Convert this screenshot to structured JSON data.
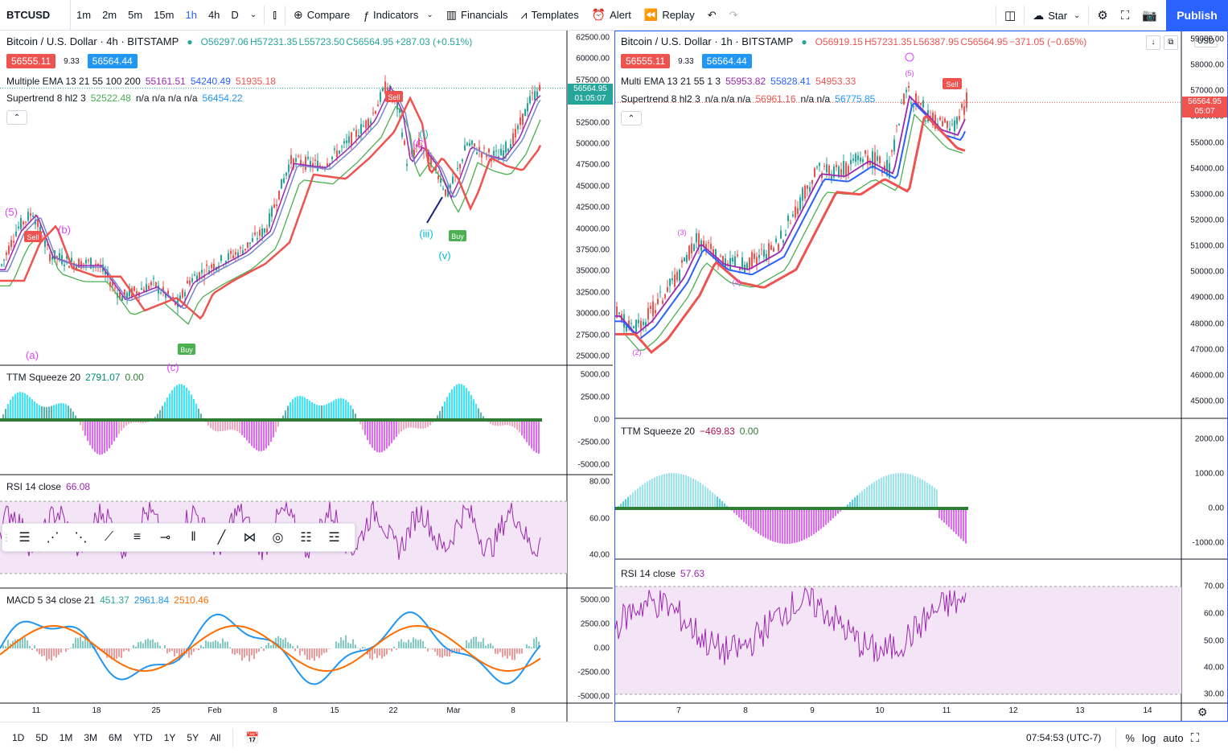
{
  "toolbar": {
    "symbol": "BTCUSD",
    "timeframes": [
      "1m",
      "2m",
      "5m",
      "15m",
      "1h",
      "4h",
      "D"
    ],
    "active_tf": "1h",
    "compare": "Compare",
    "indicators": "Indicators",
    "financials": "Financials",
    "templates": "Templates",
    "alert": "Alert",
    "replay": "Replay",
    "star": "Star",
    "publish": "Publish"
  },
  "left": {
    "title": "Bitcoin / U.S. Dollar · 4h · BITSTAMP",
    "ohlc": {
      "o": "O56297.06",
      "h": "H57231.35",
      "l": "L55723.50",
      "c": "C56564.95",
      "chg": "+287.03 (+0.51%)"
    },
    "bid": "56555.11",
    "spread": "9.33",
    "ask": "56564.44",
    "ema": {
      "label": "Multiple EMA 13 21 55 100 200",
      "v1": "55161.51",
      "v2": "54240.49",
      "v3": "51935.18"
    },
    "st": {
      "label": "Supertrend 8 hl2 3",
      "v1": "52522.48",
      "na": "n/a n/a n/a n/a",
      "v2": "56454.22"
    },
    "price_axis": [
      "62500.00",
      "60000.00",
      "57500.00",
      "55000.00",
      "52500.00",
      "50000.00",
      "47500.00",
      "45000.00",
      "42500.00",
      "40000.00",
      "37500.00",
      "35000.00",
      "32500.00",
      "30000.00",
      "27500.00",
      "25000.00"
    ],
    "last_price": "56564.95",
    "last_time": "01:05:07",
    "ttm": {
      "label": "TTM Squeeze 20",
      "v1": "2791.07",
      "v2": "0.00",
      "axis": [
        "5000.00",
        "2500.00",
        "0.00",
        "-2500.00",
        "-5000.00"
      ]
    },
    "rsi": {
      "label": "RSI 14 close",
      "v": "66.08",
      "axis": [
        "80.00",
        "60.00",
        "40.00"
      ]
    },
    "macd": {
      "label": "MACD 5 34 close 21",
      "v1": "451.37",
      "v2": "2961.84",
      "v3": "2510.46",
      "axis": [
        "5000.00",
        "2500.00",
        "0.00",
        "-2500.00",
        "-5000.00"
      ]
    },
    "time_axis": [
      "11",
      "18",
      "25",
      "Feb",
      "8",
      "15",
      "22",
      "Mar",
      "8"
    ],
    "waves": [
      "(5)",
      "(b)",
      "(C)",
      "(A)",
      "(B)",
      "(a)",
      "(c)",
      "(i)",
      "(iii)",
      "(v)",
      "Sell",
      "Buy",
      "Sell",
      "Buy"
    ]
  },
  "right": {
    "title": "Bitcoin / U.S. Dollar · 1h · BITSTAMP",
    "ohlc": {
      "o": "O56919.15",
      "h": "H57231.35",
      "l": "L56387.95",
      "c": "C56564.95",
      "chg": "−371.05 (−0.65%)"
    },
    "bid": "56555.11",
    "spread": "9.33",
    "ask": "56564.44",
    "ema": {
      "label": "Multi EMA 13 21 55 1 3",
      "v1": "55953.82",
      "v2": "55828.41",
      "v3": "54953.33"
    },
    "st": {
      "label": "Supertrend 8 hl2 3",
      "na1": "n/a n/a n/a",
      "v1": "56961.16",
      "na2": "n/a n/a",
      "v2": "56775.85"
    },
    "currency": "USD",
    "price_axis": [
      "59000.00",
      "58000.00",
      "57000.00",
      "56000.00",
      "55000.00",
      "54000.00",
      "53000.00",
      "52000.00",
      "51000.00",
      "50000.00",
      "49000.00",
      "48000.00",
      "47000.00",
      "46000.00",
      "45000.00"
    ],
    "last_price": "56564.95",
    "last_time": "05:07",
    "ttm": {
      "label": "TTM Squeeze 20",
      "v1": "−469.83",
      "v2": "0.00",
      "axis": [
        "2000.00",
        "1000.00",
        "0.00",
        "-1000.00"
      ]
    },
    "rsi": {
      "label": "RSI 14 close",
      "v": "57.63",
      "axis": [
        "70.00",
        "60.00",
        "50.00",
        "40.00",
        "30.00"
      ]
    },
    "time_axis": [
      "7",
      "8",
      "9",
      "10",
      "11",
      "12",
      "13",
      "14"
    ]
  },
  "bottom": {
    "ranges": [
      "1D",
      "5D",
      "1M",
      "3M",
      "6M",
      "YTD",
      "1Y",
      "5Y",
      "All"
    ],
    "clock": "07:54:53 (UTC-7)",
    "pct": "%",
    "log": "log",
    "auto": "auto"
  },
  "colors": {
    "up": "#26a69a",
    "down": "#ef5350",
    "ema_red": "#ef5350",
    "ema_blue": "#2962ff",
    "ema_purple": "#9c27b0",
    "st_green": "#4caf50",
    "rsi": "#9c27b0",
    "macd": "#2196f3",
    "signal": "#ff6d00",
    "wave": "#e040fb"
  }
}
